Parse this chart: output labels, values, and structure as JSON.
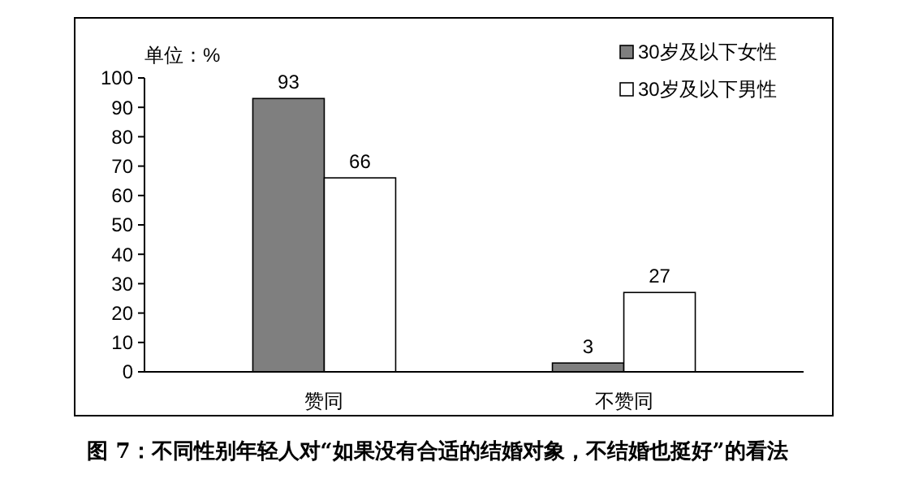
{
  "chart_data": {
    "type": "bar",
    "title": "图 7：不同性别年轻人对“如果没有合适的结婚对象，不结婚也挺好”的看法",
    "ylabel": "单位：%",
    "categories": [
      "赞同",
      "不赞同"
    ],
    "series": [
      {
        "name": "30岁及以下女性",
        "color": "#7f7f7f",
        "values": [
          93,
          3
        ]
      },
      {
        "name": "30岁及以下男性",
        "color": "#ffffff",
        "values": [
          66,
          27
        ]
      }
    ],
    "ylim": [
      0,
      100
    ],
    "yticks": [
      0,
      10,
      20,
      30,
      40,
      50,
      60,
      70,
      80,
      90,
      100
    ],
    "data_labels": true,
    "legend": "top right",
    "grid": false
  }
}
